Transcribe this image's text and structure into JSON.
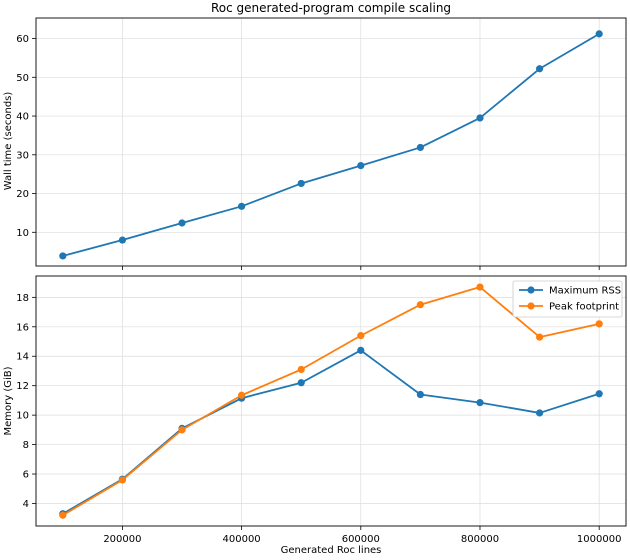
{
  "chart_data": [
    {
      "type": "line",
      "title": "Roc generated-program compile scaling",
      "xlabel": "",
      "ylabel": "Wall time (seconds)",
      "x": [
        100000,
        200000,
        300000,
        400000,
        500000,
        600000,
        700000,
        800000,
        900000,
        1000000
      ],
      "xlim": [
        55000,
        1045000
      ],
      "xticks": [],
      "ylim": [
        1.3,
        65.3
      ],
      "yticks": [
        10,
        20,
        30,
        40,
        50,
        60
      ],
      "grid": true,
      "legend": null,
      "series": [
        {
          "values": [
            3.9,
            8.0,
            12.4,
            16.7,
            22.6,
            27.2,
            31.9,
            39.5,
            52.2,
            61.2
          ],
          "color": "#1f77b4"
        }
      ]
    },
    {
      "type": "line",
      "title": "",
      "xlabel": "Generated Roc lines",
      "ylabel": "Memory (GiB)",
      "x": [
        100000,
        200000,
        300000,
        400000,
        500000,
        600000,
        700000,
        800000,
        900000,
        1000000
      ],
      "xlim": [
        55000,
        1045000
      ],
      "xticks": [
        "200000",
        "400000",
        "600000",
        "800000",
        "1000000"
      ],
      "ylim": [
        2.47,
        19.45
      ],
      "yticks": [
        4,
        6,
        8,
        10,
        12,
        14,
        16,
        18
      ],
      "grid": true,
      "legend": "top-right",
      "series": [
        {
          "name": "Maximum RSS",
          "values": [
            3.3,
            5.65,
            9.1,
            11.15,
            12.2,
            14.4,
            11.4,
            10.85,
            10.15,
            11.45
          ],
          "color": "#1f77b4"
        },
        {
          "name": "Peak footprint",
          "values": [
            3.2,
            5.6,
            9.0,
            11.35,
            13.1,
            15.4,
            17.5,
            18.7,
            15.3,
            16.2
          ],
          "color": "#ff7f0e"
        }
      ]
    }
  ]
}
